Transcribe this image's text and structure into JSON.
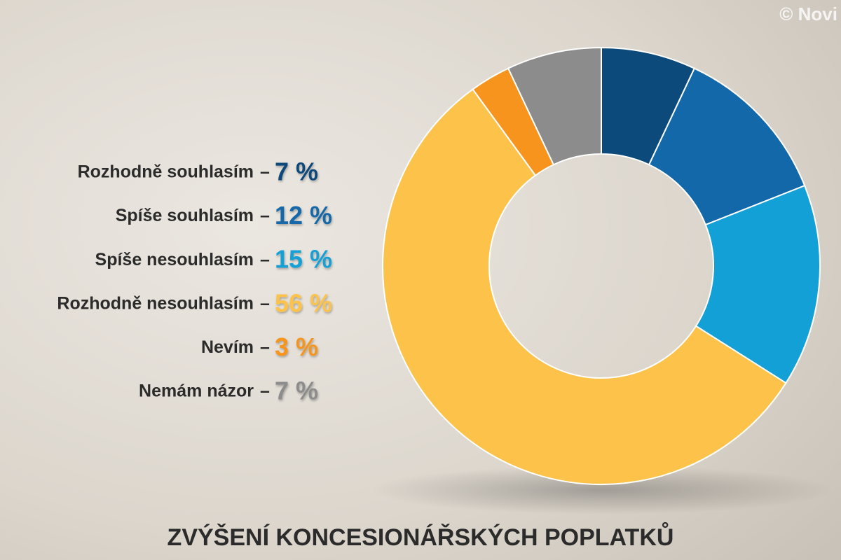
{
  "chart_data": {
    "type": "donut",
    "title": "ZVÝŠENÍ KONCESIONÁŘSKÝCH POPLATKŮ",
    "watermark": "© Novi",
    "label_separator": "–",
    "categories": [
      "Rozhodně souhlasím",
      "Spíše souhlasím",
      "Spíše nesouhlasím",
      "Rozhodně nesouhlasím",
      "Nevím",
      "Nemám názor"
    ],
    "values": [
      7,
      12,
      15,
      56,
      3,
      7
    ],
    "value_labels": [
      "7 %",
      "12 %",
      "15 %",
      "56 %",
      "3 %",
      "7 %"
    ],
    "colors": [
      "#0b4a7a",
      "#1268a8",
      "#12a0d6",
      "#fcc24a",
      "#f7941d",
      "#8c8c8c"
    ]
  }
}
